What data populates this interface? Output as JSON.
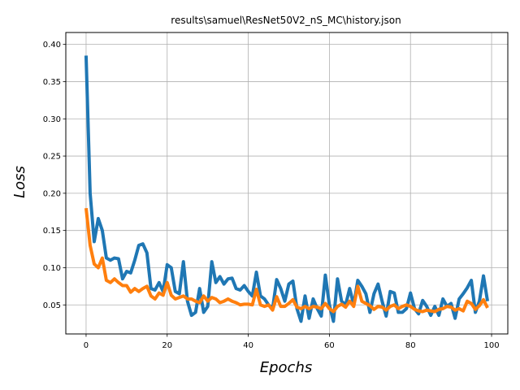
{
  "chart_data": {
    "type": "line",
    "title": "results\\samuel\\ResNet50V2_nS_MC\\history.json",
    "xlabel": "Epochs",
    "ylabel": "Loss",
    "xlim": [
      -5,
      104
    ],
    "ylim": [
      0.011,
      0.416
    ],
    "grid": true,
    "xticks": [
      0,
      20,
      40,
      60,
      80,
      100
    ],
    "yticks": [
      0.05,
      0.1,
      0.15,
      0.2,
      0.25,
      0.3,
      0.35,
      0.4
    ],
    "xtick_labels": [
      "0",
      "20",
      "40",
      "60",
      "80",
      "100"
    ],
    "ytick_labels": [
      "0.05",
      "0.10",
      "0.15",
      "0.20",
      "0.25",
      "0.30",
      "0.35",
      "0.40"
    ],
    "series": [
      {
        "color": "#1f77b4",
        "values": [
          0.385,
          0.2,
          0.135,
          0.166,
          0.15,
          0.113,
          0.11,
          0.113,
          0.112,
          0.085,
          0.095,
          0.093,
          0.11,
          0.13,
          0.132,
          0.12,
          0.072,
          0.07,
          0.08,
          0.068,
          0.104,
          0.1,
          0.068,
          0.065,
          0.108,
          0.055,
          0.036,
          0.04,
          0.072,
          0.04,
          0.048,
          0.108,
          0.08,
          0.088,
          0.078,
          0.085,
          0.086,
          0.072,
          0.07,
          0.076,
          0.068,
          0.062,
          0.094,
          0.062,
          0.058,
          0.05,
          0.045,
          0.084,
          0.072,
          0.055,
          0.078,
          0.082,
          0.045,
          0.028,
          0.062,
          0.032,
          0.058,
          0.045,
          0.035,
          0.09,
          0.05,
          0.028,
          0.085,
          0.055,
          0.05,
          0.072,
          0.05,
          0.083,
          0.075,
          0.065,
          0.04,
          0.065,
          0.078,
          0.055,
          0.035,
          0.068,
          0.066,
          0.04,
          0.04,
          0.045,
          0.066,
          0.045,
          0.038,
          0.056,
          0.048,
          0.036,
          0.048,
          0.036,
          0.058,
          0.048,
          0.052,
          0.032,
          0.058,
          0.065,
          0.073,
          0.083,
          0.04,
          0.055,
          0.089,
          0.055
        ]
      },
      {
        "color": "#ff7f0e",
        "values": [
          0.18,
          0.13,
          0.105,
          0.1,
          0.113,
          0.083,
          0.08,
          0.085,
          0.08,
          0.076,
          0.076,
          0.067,
          0.072,
          0.068,
          0.072,
          0.075,
          0.062,
          0.058,
          0.066,
          0.063,
          0.08,
          0.063,
          0.058,
          0.06,
          0.062,
          0.058,
          0.058,
          0.055,
          0.053,
          0.062,
          0.055,
          0.06,
          0.058,
          0.053,
          0.055,
          0.058,
          0.055,
          0.053,
          0.05,
          0.051,
          0.051,
          0.05,
          0.071,
          0.05,
          0.048,
          0.05,
          0.043,
          0.061,
          0.048,
          0.048,
          0.052,
          0.057,
          0.047,
          0.045,
          0.048,
          0.045,
          0.048,
          0.047,
          0.045,
          0.052,
          0.045,
          0.041,
          0.048,
          0.051,
          0.047,
          0.055,
          0.048,
          0.075,
          0.055,
          0.052,
          0.049,
          0.044,
          0.048,
          0.047,
          0.043,
          0.048,
          0.05,
          0.045,
          0.048,
          0.05,
          0.048,
          0.044,
          0.042,
          0.041,
          0.043,
          0.042,
          0.041,
          0.044,
          0.045,
          0.048,
          0.047,
          0.043,
          0.045,
          0.042,
          0.055,
          0.052,
          0.044,
          0.049,
          0.057,
          0.046
        ]
      }
    ]
  }
}
